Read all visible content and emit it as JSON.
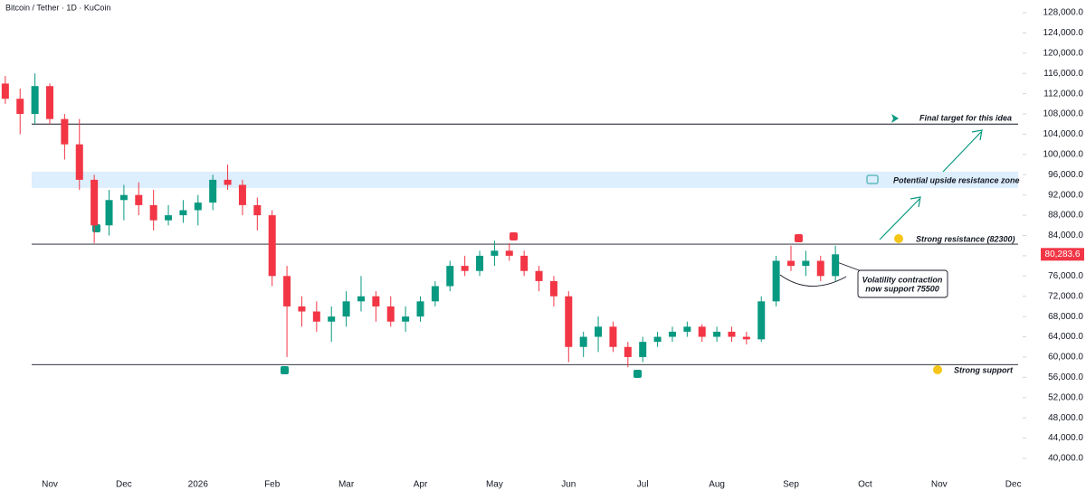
{
  "chart_data": {
    "type": "candlestick",
    "title": "Bitcoin / Tether · 1D · KuCoin",
    "categories": [
      null,
      null,
      null,
      "Nov",
      null,
      null,
      null,
      null,
      "Dec",
      null,
      null,
      null,
      null,
      "2026",
      null,
      null,
      null,
      null,
      "Feb",
      null,
      null,
      null,
      null,
      "Mar",
      null,
      null,
      null,
      null,
      "Apr",
      null,
      null,
      null,
      null,
      "May",
      null,
      null,
      null,
      null,
      "Jun",
      null,
      null,
      null,
      null,
      "Jul",
      null,
      null,
      null,
      null,
      "Aug",
      null,
      null,
      null,
      null,
      "Sep",
      null,
      null,
      null,
      null,
      "Oct",
      null,
      null,
      null,
      null,
      "Nov",
      null,
      null,
      null,
      null,
      "Dec"
    ],
    "open": [
      114000,
      111000,
      108000,
      113500,
      107000,
      102000,
      95000,
      86000,
      91000,
      92000,
      90000,
      87000,
      88000,
      89000,
      90500,
      95000,
      94000,
      90000,
      88000,
      76000,
      70000,
      69000,
      67000,
      68000,
      71000,
      72000,
      70000,
      67000,
      68000,
      71000,
      74000,
      78000,
      77000,
      80000,
      81000,
      80000,
      77000,
      75000,
      72000,
      62000,
      64000,
      66000,
      62000,
      60000,
      63000,
      64000,
      65000,
      66000,
      64000,
      65000,
      64000,
      63500,
      71000,
      79000,
      78000,
      79000,
      76000,
      null,
      null,
      null,
      null,
      null,
      null,
      null,
      null,
      null,
      null,
      null,
      null
    ],
    "high": [
      115500,
      113000,
      116000,
      114000,
      108000,
      107000,
      96000,
      93000,
      94000,
      94500,
      93000,
      90000,
      91000,
      92000,
      96000,
      98000,
      95000,
      91500,
      89000,
      78000,
      72000,
      71000,
      70000,
      73000,
      76000,
      73000,
      72000,
      70000,
      72000,
      75000,
      79000,
      80000,
      81000,
      83000,
      82500,
      81000,
      78000,
      76000,
      73000,
      65000,
      68000,
      67000,
      63000,
      64000,
      65000,
      66000,
      67000,
      66500,
      66000,
      66000,
      65000,
      72000,
      80000,
      82000,
      81000,
      80000,
      82000,
      null,
      null,
      null,
      null,
      null,
      null,
      null,
      null,
      null,
      null,
      null,
      null
    ],
    "low": [
      110000,
      104000,
      106000,
      106000,
      99000,
      93000,
      82500,
      84000,
      87000,
      88000,
      85000,
      86000,
      86500,
      86000,
      89000,
      93000,
      88000,
      85000,
      74000,
      60000,
      66000,
      65000,
      63000,
      66000,
      69000,
      67000,
      66000,
      65000,
      67000,
      70000,
      73000,
      76000,
      76000,
      78000,
      79000,
      76000,
      73000,
      70000,
      59000,
      60000,
      61000,
      61000,
      58000,
      59000,
      62000,
      63000,
      64000,
      63000,
      63000,
      63000,
      62500,
      63000,
      70000,
      77000,
      76000,
      75000,
      75000,
      null,
      null,
      null,
      null,
      null,
      null,
      null,
      null,
      null,
      null,
      null,
      null
    ],
    "close": [
      111000,
      108000,
      113500,
      107000,
      102000,
      95000,
      86000,
      91000,
      92000,
      90000,
      87000,
      88000,
      89000,
      90500,
      95000,
      94000,
      90000,
      88000,
      76000,
      70000,
      69000,
      67000,
      68000,
      71000,
      72000,
      70000,
      67000,
      68000,
      71000,
      74000,
      78000,
      77000,
      80000,
      81000,
      80000,
      77000,
      75000,
      72000,
      62000,
      64000,
      66000,
      62000,
      60000,
      63000,
      64000,
      65000,
      66000,
      64000,
      65000,
      64000,
      63500,
      71000,
      79000,
      78000,
      79000,
      76000,
      80283.6,
      null,
      null,
      null,
      null,
      null,
      null,
      null,
      null,
      null,
      null,
      null,
      null
    ],
    "up_color": "#089981",
    "down_color": "#f23645",
    "last_price": {
      "value": 80283.6,
      "label": "80,283.6"
    },
    "ylim": [
      35900,
      130500
    ],
    "yticks": [
      {
        "value": 40000,
        "label": "40,000.0"
      },
      {
        "value": 44000,
        "label": "44,000.0"
      },
      {
        "value": 48000,
        "label": "48,000.0"
      },
      {
        "value": 52000,
        "label": "52,000.0"
      },
      {
        "value": 56000,
        "label": "56,000.0"
      },
      {
        "value": 60000,
        "label": "60,000.0"
      },
      {
        "value": 64000,
        "label": "64,000.0"
      },
      {
        "value": 68000,
        "label": "68,000.0"
      },
      {
        "value": 72000,
        "label": "72,000.0"
      },
      {
        "value": 76000,
        "label": "76,000.0"
      },
      {
        "value": 80000,
        "label": "80,000.0"
      },
      {
        "value": 84000,
        "label": "84,000.0"
      },
      {
        "value": 88000,
        "label": "88,000.0"
      },
      {
        "value": 92000,
        "label": "92,000.0"
      },
      {
        "value": 96000,
        "label": "96,000.0"
      },
      {
        "value": 100000,
        "label": "100,000.0"
      },
      {
        "value": 104000,
        "label": "104,000.0"
      },
      {
        "value": 108000,
        "label": "108,000.0"
      },
      {
        "value": 112000,
        "label": "112,000.0"
      },
      {
        "value": 116000,
        "label": "116,000.0"
      },
      {
        "value": 120000,
        "label": "120,000.0"
      },
      {
        "value": 124000,
        "label": "124,000.0"
      },
      {
        "value": 128000,
        "label": "128,000.0"
      }
    ],
    "levels": [
      106000,
      82300,
      58500
    ],
    "zone": [
      93400,
      96600
    ],
    "annotations": [
      "Final target for this idea",
      "Potential upside resistance zone",
      "Strong resistance (82300)",
      "Strong support",
      "Volatility contraction",
      "now support 75500"
    ]
  }
}
